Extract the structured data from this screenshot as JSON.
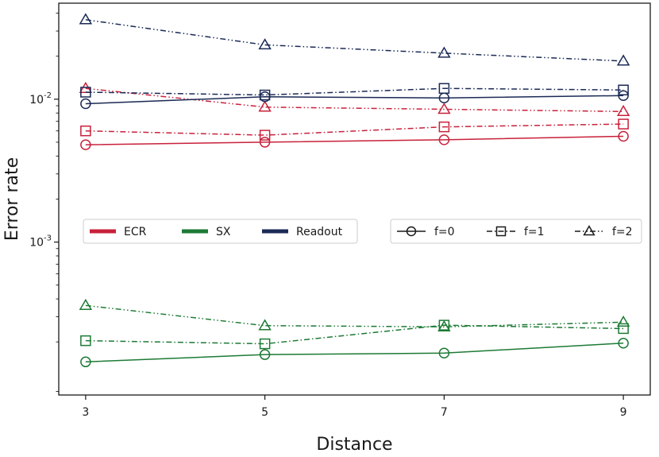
{
  "chart_data": {
    "type": "line",
    "xlabel": "Distance",
    "ylabel": "Error rate",
    "x": [
      3,
      5,
      7,
      9
    ],
    "xlim": [
      2.7,
      9.3
    ],
    "ylim": [
      8.5e-05,
      0.047
    ],
    "yscale": "log",
    "y_ticks": [
      {
        "value": 0.001,
        "base": "10",
        "exp": "-3"
      },
      {
        "value": 0.01,
        "base": "10",
        "exp": "-2"
      }
    ],
    "grid": false,
    "colors": {
      "ECR": "#c8213b",
      "SX": "#1d7a35",
      "Readout": "#1b2a55"
    },
    "legend_left": {
      "position": "center-left",
      "entries": [
        "ECR",
        "SX",
        "Readout"
      ]
    },
    "legend_right": {
      "position": "center-right",
      "entries": [
        "f=0",
        "f=1",
        "f=2"
      ]
    },
    "series": [
      {
        "group": "ECR",
        "f": "f=0",
        "marker": "circle",
        "dash": "solid",
        "values": [
          0.0048,
          0.005,
          0.0052,
          0.0055
        ]
      },
      {
        "group": "ECR",
        "f": "f=1",
        "marker": "square",
        "dash": "dashdot",
        "values": [
          0.006,
          0.0056,
          0.0064,
          0.0067
        ]
      },
      {
        "group": "ECR",
        "f": "f=2",
        "marker": "triangle",
        "dash": "dashdotdot",
        "values": [
          0.0119,
          0.0088,
          0.0085,
          0.0082
        ]
      },
      {
        "group": "SX",
        "f": "f=0",
        "marker": "circle",
        "dash": "solid",
        "values": [
          0.000145,
          0.000163,
          0.000167,
          0.000196
        ]
      },
      {
        "group": "SX",
        "f": "f=1",
        "marker": "square",
        "dash": "dashdot",
        "values": [
          0.000204,
          0.000194,
          0.000262,
          0.000248
        ]
      },
      {
        "group": "SX",
        "f": "f=2",
        "marker": "triangle",
        "dash": "dashdotdot",
        "values": [
          0.00036,
          0.00026,
          0.000255,
          0.000275
        ]
      },
      {
        "group": "Readout",
        "f": "f=0",
        "marker": "circle",
        "dash": "solid",
        "values": [
          0.0093,
          0.0104,
          0.0102,
          0.0106
        ]
      },
      {
        "group": "Readout",
        "f": "f=1",
        "marker": "square",
        "dash": "dashdot",
        "values": [
          0.0112,
          0.0107,
          0.0119,
          0.0116
        ]
      },
      {
        "group": "Readout",
        "f": "f=2",
        "marker": "triangle",
        "dash": "dashdotdot",
        "values": [
          0.036,
          0.024,
          0.021,
          0.0185
        ]
      }
    ]
  }
}
